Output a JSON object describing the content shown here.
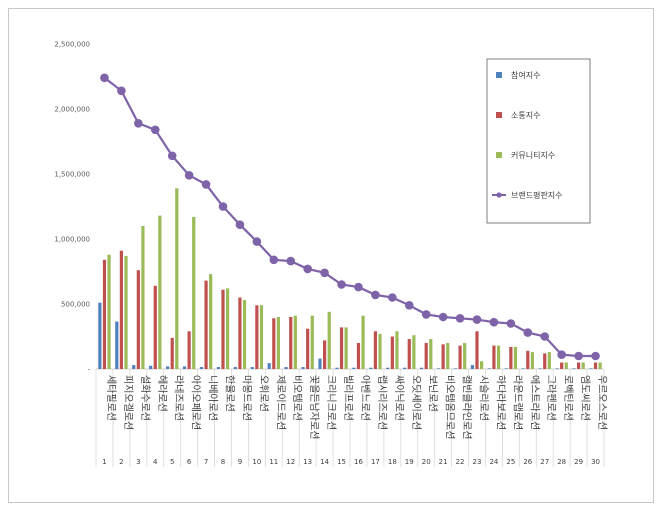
{
  "chart_data": {
    "type": "bar",
    "title": "",
    "xlabel": "",
    "ylabel": "",
    "ylim": [
      0,
      2500000
    ],
    "yticks": [
      "-",
      "500,000",
      "1,000,000",
      "1,500,000",
      "2,000,000",
      "2,500,000"
    ],
    "grid": false,
    "legend_position": "right",
    "categories": [
      "세타필로션",
      "피지오겔로션",
      "설화수로션",
      "헤라로션",
      "라네즈로션",
      "아이오페로션",
      "니베아로션",
      "한율로션",
      "마몽드로션",
      "오휘로션",
      "제로이드로션",
      "비오템로션",
      "꽃을든남자로션",
      "크리니크로션",
      "빌리프로션",
      "아벤느로션",
      "랩시리즈로션",
      "싸이닉로션",
      "오딧세이로션",
      "보닌로션",
      "비오템옴므로션",
      "캘빈클라인로션",
      "시슬리로션",
      "하다라보로션",
      "라운드랩로션",
      "에스트라로션",
      "그라펜로션",
      "로벡틴로션",
      "엠도씨로션",
      "우르오스로션"
    ],
    "index_labels": [
      "1",
      "2",
      "3",
      "4",
      "5",
      "6",
      "7",
      "8",
      "9",
      "10",
      "11",
      "12",
      "13",
      "14",
      "15",
      "16",
      "17",
      "18",
      "19",
      "20",
      "21",
      "22",
      "23",
      "24",
      "25",
      "26",
      "27",
      "28",
      "29",
      "30"
    ],
    "series": [
      {
        "name": "참여지수",
        "kind": "bar",
        "color": "#4f81bd",
        "values": [
          510000,
          365000,
          30000,
          25000,
          20000,
          20000,
          15000,
          15000,
          15000,
          15000,
          45000,
          15000,
          15000,
          80000,
          10000,
          10000,
          10000,
          10000,
          10000,
          10000,
          5000,
          5000,
          30000,
          5000,
          5000,
          5000,
          5000,
          5000,
          5000,
          5000
        ]
      },
      {
        "name": "소통지수",
        "kind": "bar",
        "color": "#c0504d",
        "values": [
          840000,
          910000,
          760000,
          640000,
          240000,
          290000,
          680000,
          610000,
          550000,
          490000,
          390000,
          400000,
          310000,
          220000,
          320000,
          200000,
          290000,
          250000,
          230000,
          200000,
          190000,
          180000,
          290000,
          180000,
          170000,
          140000,
          120000,
          50000,
          50000,
          50000
        ]
      },
      {
        "name": "커뮤니티지수",
        "kind": "bar",
        "color": "#9bbb59",
        "values": [
          880000,
          870000,
          1100000,
          1180000,
          1390000,
          1170000,
          730000,
          620000,
          530000,
          490000,
          400000,
          410000,
          410000,
          440000,
          320000,
          410000,
          270000,
          290000,
          260000,
          230000,
          200000,
          200000,
          60000,
          180000,
          170000,
          130000,
          130000,
          50000,
          50000,
          50000
        ]
      },
      {
        "name": "브랜드평판지수",
        "kind": "line",
        "color": "#7f63a8",
        "values": [
          2240000,
          2140000,
          1890000,
          1840000,
          1640000,
          1490000,
          1420000,
          1250000,
          1110000,
          980000,
          840000,
          830000,
          770000,
          740000,
          650000,
          630000,
          570000,
          550000,
          490000,
          420000,
          400000,
          390000,
          380000,
          360000,
          350000,
          280000,
          250000,
          110000,
          100000,
          100000
        ]
      }
    ]
  }
}
